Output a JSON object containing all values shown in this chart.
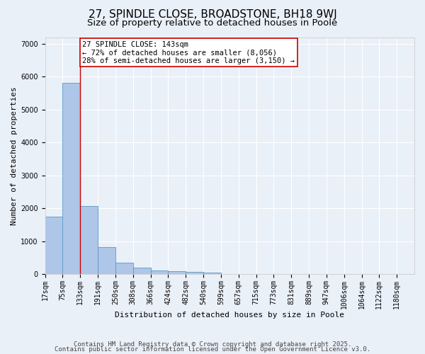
{
  "title_line1": "27, SPINDLE CLOSE, BROADSTONE, BH18 9WJ",
  "title_line2": "Size of property relative to detached houses in Poole",
  "xlabel": "Distribution of detached houses by size in Poole",
  "ylabel": "Number of detached properties",
  "categories": [
    "17sqm",
    "75sqm",
    "133sqm",
    "191sqm",
    "250sqm",
    "308sqm",
    "366sqm",
    "424sqm",
    "482sqm",
    "540sqm",
    "599sqm",
    "657sqm",
    "715sqm",
    "773sqm",
    "831sqm",
    "889sqm",
    "947sqm",
    "1006sqm",
    "1064sqm",
    "1122sqm",
    "1180sqm"
  ],
  "values": [
    1750,
    5820,
    2060,
    820,
    350,
    185,
    105,
    85,
    60,
    35,
    5,
    2,
    1,
    1,
    0,
    0,
    0,
    0,
    0,
    0,
    0
  ],
  "bar_color": "#aec6e8",
  "bar_edge_color": "#5b99c8",
  "subject_index": 2,
  "subject_line_color": "#cc0000",
  "annotation_text": "27 SPINDLE CLOSE: 143sqm\n← 72% of detached houses are smaller (8,056)\n28% of semi-detached houses are larger (3,150) →",
  "annotation_box_color": "#ffffff",
  "annotation_box_edge_color": "#cc0000",
  "ylim": [
    0,
    7200
  ],
  "yticks": [
    0,
    1000,
    2000,
    3000,
    4000,
    5000,
    6000,
    7000
  ],
  "background_color": "#eaf0f8",
  "grid_color": "#ffffff",
  "footer_line1": "Contains HM Land Registry data © Crown copyright and database right 2025.",
  "footer_line2": "Contains public sector information licensed under the Open Government Licence v3.0.",
  "title_fontsize": 11,
  "subtitle_fontsize": 9.5,
  "axis_label_fontsize": 8,
  "tick_fontsize": 7,
  "annotation_fontsize": 7.5,
  "footer_fontsize": 6.5
}
